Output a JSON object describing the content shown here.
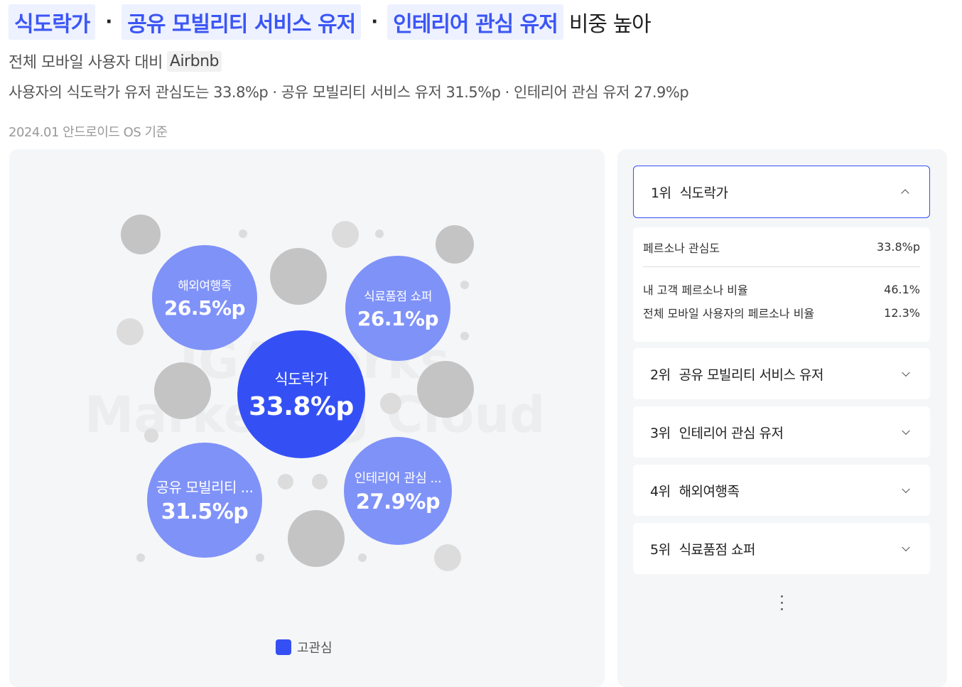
{
  "headline": {
    "chip1": "식도락가",
    "chip2": "공유 모빌리티 서비스 유저",
    "chip3": "인테리어 관심 유저",
    "separator": "·",
    "tail": "비중 높아"
  },
  "subline": {
    "text": "전체 모바일 사용자 대비",
    "brand": "Airbnb"
  },
  "detailline": "사용자의 식도락가 유저 관심도는 33.8%p  · 공유 모빌리티 서비스 유저 31.5%p  · 인테리어 관심 유저 27.9%p",
  "date": "2024.01 안드로이드 OS 기준",
  "watermark": {
    "line1": "IGAWorks",
    "line2": "Marketing Cloud"
  },
  "colors": {
    "accent": "#3450f5",
    "bubble_main": "#3450f5",
    "bubble_light": "#7f92f8",
    "gray_dot": "#c4c4c4",
    "light_dot": "#dcdcdc"
  },
  "chart_data": {
    "type": "bubble",
    "series": [
      {
        "name": "식도락가",
        "value": 33.8,
        "label": "33.8%p"
      },
      {
        "name": "공유 모빌리티 ...",
        "value": 31.5,
        "label": "31.5%p"
      },
      {
        "name": "인테리어 관심 ...",
        "value": 27.9,
        "label": "27.9%p"
      },
      {
        "name": "해외여행족",
        "value": 26.5,
        "label": "26.5%p"
      },
      {
        "name": "식료품점 쇼퍼",
        "value": 26.1,
        "label": "26.1%p"
      }
    ],
    "legend": {
      "label": "고관심",
      "position": "bottom"
    }
  },
  "ranking": {
    "items": [
      {
        "rank": "1위",
        "name": "식도락가",
        "open": true
      },
      {
        "rank": "2위",
        "name": "공유 모빌리티 서비스 유저",
        "open": false
      },
      {
        "rank": "3위",
        "name": "인테리어 관심 유저",
        "open": false
      },
      {
        "rank": "4위",
        "name": "해외여행족",
        "open": false
      },
      {
        "rank": "5위",
        "name": "식료품점 쇼퍼",
        "open": false
      }
    ],
    "detail": {
      "head_label": "페르소나 관심도",
      "head_value": "33.8%p",
      "row1_label": "내 고객 페르소나 비율",
      "row1_value": "46.1%",
      "row2_label": "전체 모바일 사용자의 페르소나 비율",
      "row2_value": "12.3%"
    },
    "more_icon": "vertical-dots-icon"
  }
}
